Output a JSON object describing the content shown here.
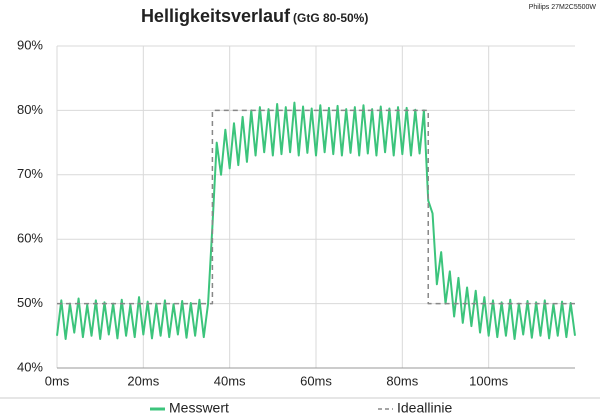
{
  "chart_data": {
    "type": "line",
    "title": "Helligkeitsverlauf",
    "subtitle": "(GtG 80-50%)",
    "annotation": "Philips 27M2C5500W",
    "xlim": [
      0,
      120
    ],
    "xticks": [
      {
        "value": 0,
        "label": "0ms"
      },
      {
        "value": 20,
        "label": "20ms"
      },
      {
        "value": 40,
        "label": "40ms"
      },
      {
        "value": 60,
        "label": "60ms"
      },
      {
        "value": 80,
        "label": "80ms"
      },
      {
        "value": 100,
        "label": "100ms"
      }
    ],
    "ylim": [
      40,
      90
    ],
    "yticks": [
      {
        "value": 40,
        "label": "40%"
      },
      {
        "value": 50,
        "label": "50%"
      },
      {
        "value": 60,
        "label": "60%"
      },
      {
        "value": 70,
        "label": "70%"
      },
      {
        "value": 80,
        "label": "80%"
      },
      {
        "value": 90,
        "label": "90%"
      }
    ],
    "grid": true,
    "legend": "bottom",
    "series": [
      {
        "name": "Messwert",
        "color": "#3cc47c",
        "dash": false,
        "x": [
          0,
          1,
          2,
          3,
          4,
          5,
          6,
          7,
          8,
          9,
          10,
          11,
          12,
          13,
          14,
          15,
          16,
          17,
          18,
          19,
          20,
          21,
          22,
          23,
          24,
          25,
          26,
          27,
          28,
          29,
          30,
          31,
          32,
          33,
          34,
          35,
          36,
          37,
          38,
          39,
          40,
          41,
          42,
          43,
          44,
          45,
          46,
          47,
          48,
          49,
          50,
          51,
          52,
          53,
          54,
          55,
          56,
          57,
          58,
          59,
          60,
          61,
          62,
          63,
          64,
          65,
          66,
          67,
          68,
          69,
          70,
          71,
          72,
          73,
          74,
          75,
          76,
          77,
          78,
          79,
          80,
          81,
          82,
          83,
          84,
          85,
          86,
          87,
          88,
          89,
          90,
          91,
          92,
          93,
          94,
          95,
          96,
          97,
          98,
          99,
          100,
          101,
          102,
          103,
          104,
          105,
          106,
          107,
          108,
          109,
          110,
          111,
          112,
          113,
          114,
          115,
          116,
          117,
          118,
          119,
          120
        ],
        "values": [
          45,
          50.5,
          44.5,
          50,
          45.5,
          50.8,
          44.8,
          49.8,
          45,
          50.5,
          44.5,
          50.2,
          45.2,
          50,
          44.6,
          50.6,
          45,
          49.8,
          44.8,
          51,
          45.2,
          50.3,
          44.6,
          50,
          45,
          50.5,
          44.8,
          49.9,
          45.2,
          50.4,
          44.7,
          50.1,
          45,
          50.6,
          44.8,
          50,
          62,
          75,
          70,
          77,
          71,
          78,
          71.5,
          79,
          72,
          80,
          73,
          80.5,
          73.5,
          80.2,
          73,
          81,
          73.2,
          80.5,
          73.5,
          81.2,
          73,
          80.6,
          73.4,
          80.3,
          73,
          80.8,
          73.5,
          80.4,
          73.2,
          80.7,
          73,
          80.2,
          73.4,
          80.5,
          73,
          80.8,
          73.3,
          80.2,
          73,
          80.6,
          73.5,
          80.3,
          73,
          80.5,
          73.2,
          80.4,
          73,
          80.1,
          73.3,
          80,
          66,
          64,
          53,
          58,
          50,
          55,
          48,
          54,
          47,
          52.5,
          46.5,
          52,
          45.5,
          51,
          45,
          50.5,
          44.8,
          50.2,
          45,
          50.6,
          44.5,
          50,
          45.2,
          50.4,
          44.7,
          50.2,
          45,
          50.5,
          44.6,
          49.9,
          45,
          50.3,
          44.8,
          50.1,
          45
        ]
      },
      {
        "name": "Ideallinie",
        "color": "#888888",
        "dash": true,
        "x": [
          0,
          36,
          36,
          86,
          86,
          120
        ],
        "values": [
          50,
          50,
          80,
          80,
          50,
          50
        ]
      }
    ]
  }
}
